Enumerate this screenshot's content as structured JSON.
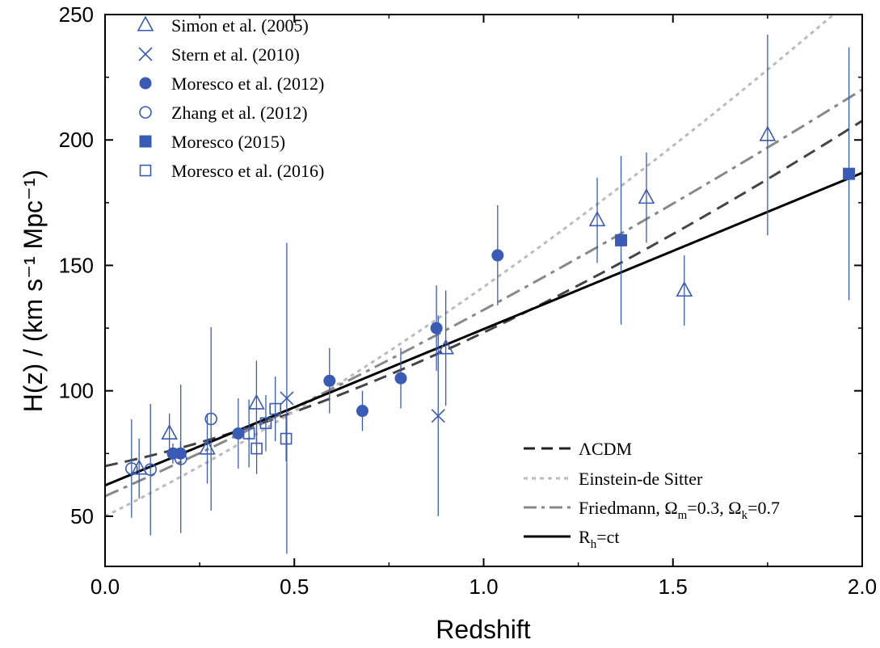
{
  "chart_data": {
    "type": "scatter",
    "xlabel": "Redshift",
    "ylabel": "H(z) / (km s⁻¹ Mpc⁻¹)",
    "xlim": [
      0.0,
      2.0
    ],
    "ylim": [
      30,
      250
    ],
    "x_ticks": [
      "0.0",
      "0.5",
      "1.0",
      "1.5",
      "2.0"
    ],
    "y_ticks": [
      "50",
      "100",
      "150",
      "200",
      "250"
    ],
    "y_tick_values": [
      50,
      100,
      150,
      200,
      250
    ],
    "x_tick_values": [
      0.0,
      0.5,
      1.0,
      1.5,
      2.0
    ],
    "grid": false,
    "data_color": "#3a5bb5",
    "series": [
      {
        "name": "Simon et al. (2005)",
        "marker": "triangle-open",
        "points": [
          {
            "x": 0.09,
            "y": 69,
            "err": 12
          },
          {
            "x": 0.17,
            "y": 83,
            "err": 8
          },
          {
            "x": 0.27,
            "y": 77,
            "err": 14
          },
          {
            "x": 0.4,
            "y": 95,
            "err": 17
          },
          {
            "x": 0.9,
            "y": 117,
            "err": 23
          },
          {
            "x": 1.3,
            "y": 168,
            "err": 17
          },
          {
            "x": 1.43,
            "y": 177,
            "err": 18
          },
          {
            "x": 1.53,
            "y": 140,
            "err": 14
          },
          {
            "x": 1.75,
            "y": 202,
            "err": 40
          }
        ]
      },
      {
        "name": "Stern et al. (2010)",
        "marker": "cross",
        "points": [
          {
            "x": 0.48,
            "y": 97,
            "err": 62
          },
          {
            "x": 0.88,
            "y": 90,
            "err": 40
          }
        ]
      },
      {
        "name": "Moresco et al. (2012)",
        "marker": "circle-filled",
        "points": [
          {
            "x": 0.1791,
            "y": 75,
            "err": 4
          },
          {
            "x": 0.1993,
            "y": 75,
            "err": 5
          },
          {
            "x": 0.3519,
            "y": 83,
            "err": 14
          },
          {
            "x": 0.5929,
            "y": 104,
            "err": 13
          },
          {
            "x": 0.6797,
            "y": 92,
            "err": 8
          },
          {
            "x": 0.7812,
            "y": 105,
            "err": 12
          },
          {
            "x": 0.8754,
            "y": 125,
            "err": 17
          },
          {
            "x": 1.037,
            "y": 154,
            "err": 20
          }
        ]
      },
      {
        "name": "Zhang et al. (2012)",
        "marker": "circle-open",
        "points": [
          {
            "x": 0.07,
            "y": 69,
            "err": 19.6
          },
          {
            "x": 0.12,
            "y": 68.6,
            "err": 26.2
          },
          {
            "x": 0.2,
            "y": 72.9,
            "err": 29.6
          },
          {
            "x": 0.28,
            "y": 88.8,
            "err": 36.6
          }
        ]
      },
      {
        "name": "Moresco (2015)",
        "marker": "square-filled",
        "points": [
          {
            "x": 1.363,
            "y": 160,
            "err": 33.6
          },
          {
            "x": 1.965,
            "y": 186.5,
            "err": 50.4
          }
        ]
      },
      {
        "name": "Moresco et al. (2016)",
        "marker": "square-open",
        "points": [
          {
            "x": 0.3802,
            "y": 83,
            "err": 13.5
          },
          {
            "x": 0.4004,
            "y": 77,
            "err": 10.2
          },
          {
            "x": 0.4247,
            "y": 87.1,
            "err": 11.2
          },
          {
            "x": 0.4497,
            "y": 92.8,
            "err": 12.9
          },
          {
            "x": 0.4783,
            "y": 80.9,
            "err": 9
          }
        ]
      }
    ],
    "model_curves": [
      {
        "name": "ΛCDM",
        "style": "dash",
        "color": "#444444",
        "model": "lcdm",
        "H0": 70,
        "Om": 0.3
      },
      {
        "name": "Einstein-de Sitter",
        "style": "dot",
        "color": "#bbbbbb",
        "model": "eds",
        "H0": 50
      },
      {
        "name": "Friedmann, Ωm=0.3, Ωk=0.7",
        "style": "dashdot",
        "color": "#888888",
        "model": "friedmann",
        "H0": 58,
        "Om": 0.3,
        "Ok": 0.7
      },
      {
        "name": "Rh=ct",
        "style": "solid",
        "color": "#000000",
        "model": "rhct",
        "H0": 62.3
      }
    ],
    "legend_top": [
      "Simon et al. (2005)",
      "Stern et al. (2010)",
      "Moresco et al. (2012)",
      "Zhang et al. (2012)",
      "Moresco (2015)",
      "Moresco et al. (2016)"
    ],
    "legend_top_placement": "top-left",
    "legend_bottom": {
      "lcdm": "ΛCDM",
      "eds": "Einstein-de Sitter",
      "friedmann_prefix": "Friedmann, Ω",
      "friedmann_sub1": "m",
      "friedmann_mid": "=0.3, Ω",
      "friedmann_sub2": "k",
      "friedmann_suffix": "=0.7",
      "rhct_prefix": "R",
      "rhct_sub": "h",
      "rhct_suffix": "=ct"
    },
    "legend_bottom_placement": "bottom-right"
  }
}
